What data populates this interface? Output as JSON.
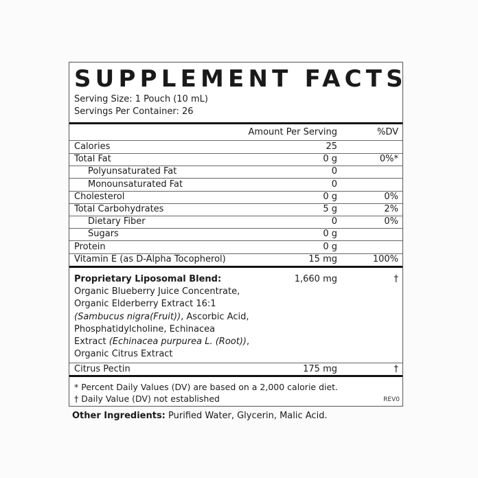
{
  "title": "SUPPLEMENT FACTS",
  "serving_size": "Serving Size: 1 Pouch (10 mL)",
  "servings_per_container": "Servings Per Container: 26",
  "header": {
    "amount": "Amount Per Serving",
    "dv": "%DV"
  },
  "rows": [
    {
      "label": "Calories",
      "amount": "25",
      "dv": ""
    },
    {
      "label": "Total Fat",
      "amount": "0 g",
      "dv": "0%*"
    },
    {
      "label": "Polyunsaturated Fat",
      "amount": "0",
      "dv": ""
    },
    {
      "label": "Monounsaturated Fat",
      "amount": "0",
      "dv": ""
    },
    {
      "label": "Cholesterol",
      "amount": "0 g",
      "dv": "0%"
    },
    {
      "label": "Total Carbohydrates",
      "amount": "5 g",
      "dv": "2%"
    },
    {
      "label": "Dietary Fiber",
      "amount": "0",
      "dv": "0%"
    },
    {
      "label": "Sugars",
      "amount": "0 g",
      "dv": ""
    },
    {
      "label": "Protein",
      "amount": "0 g",
      "dv": ""
    },
    {
      "label": "Vitamin E (as D-Alpha Tocopherol)",
      "amount": "15 mg",
      "dv": "100%"
    }
  ],
  "blend": {
    "name": "Proprietary Liposomal Blend:",
    "amount": "1,660 mg",
    "dv": "†",
    "line1": "Organic Blueberry Juice Concentrate,",
    "line2": "Organic Elderberry Extract 16:1",
    "line3_italic": "(Sambucus nigra(Fruit))",
    "line3_rest": ", Ascorbic Acid,",
    "line4": "Phosphatidylcholine, Echinacea",
    "line5_start": "Extract ",
    "line5_italic": "(Echinacea purpurea L. (Root))",
    "line5_end": ",",
    "line6": "Organic Citrus Extract"
  },
  "pectin": {
    "label": "Citrus Pectin",
    "amount": "175 mg",
    "dv": "†"
  },
  "footnotes": {
    "percent": "* Percent Daily Values (DV) are based on a 2,000 calorie diet.",
    "dagger": "† Daily Value (DV) not established",
    "rev": "REV0"
  },
  "other": {
    "label": "Other Ingredients:",
    "value": " Purified Water, Glycerin, Malic Acid."
  }
}
